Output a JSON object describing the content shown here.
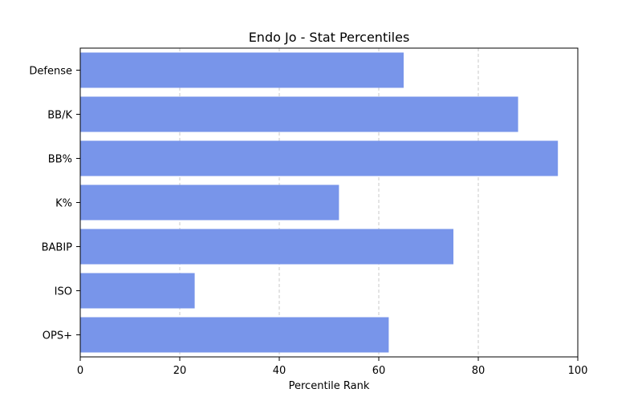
{
  "chart_data": {
    "type": "bar",
    "orientation": "horizontal",
    "title": "Endo Jo - Stat Percentiles",
    "xlabel": "Percentile Rank",
    "ylabel": "",
    "categories": [
      "Defense",
      "BB/K",
      "BB%",
      "K%",
      "BABIP",
      "ISO",
      "OPS+"
    ],
    "values": [
      65,
      88,
      96,
      52,
      75,
      23,
      62
    ],
    "xlim": [
      0,
      100
    ],
    "xticks": [
      "0",
      "20",
      "40",
      "60",
      "80",
      "100"
    ],
    "grid": "x-dashed",
    "bar_color": "#7895ea"
  }
}
